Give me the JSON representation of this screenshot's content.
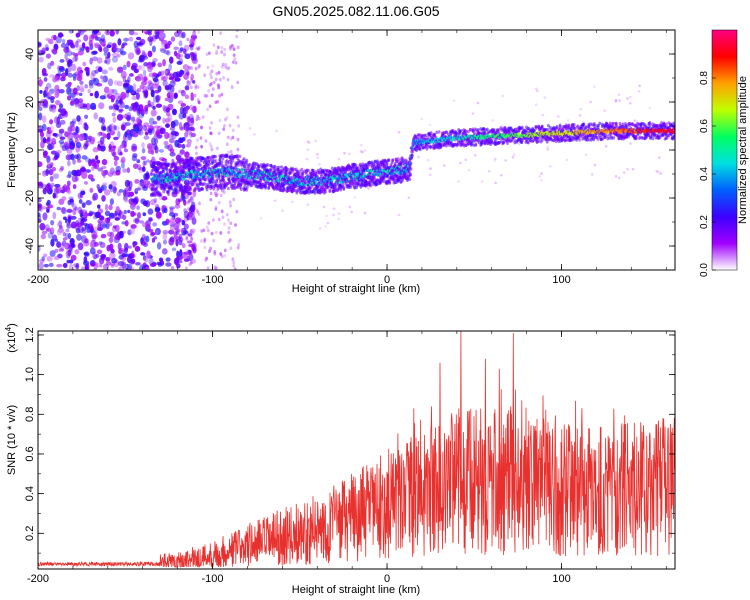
{
  "figure": {
    "title": "GN05.2025.082.11.06.G05"
  },
  "chart_data": [
    {
      "type": "heatmap",
      "panel": "spectrogram",
      "xlabel": "Height of straight line (km)",
      "ylabel": "Frequency (Hz)",
      "xlim": [
        -200,
        165
      ],
      "ylim": [
        -50,
        50
      ],
      "x_ticks": [
        -200,
        -100,
        0,
        100
      ],
      "y_ticks": [
        -40,
        -20,
        0,
        20,
        40
      ],
      "colorbar": {
        "label": "Normalized spectral amplitude",
        "range": [
          0,
          1
        ],
        "ticks": [
          "0.0",
          "0.2",
          "0.4",
          "0.6",
          "0.8"
        ],
        "tick_values": [
          0,
          0.2,
          0.4,
          0.6,
          0.8
        ],
        "colormap": [
          "#ffffff",
          "#a000ff",
          "#3c00ff",
          "#0060ff",
          "#00e0e0",
          "#00ff60",
          "#c0ff00",
          "#ffa000",
          "#ff0000",
          "#ff0080"
        ]
      },
      "ridge": [
        {
          "x": -130,
          "freq": -12
        },
        {
          "x": -110,
          "freq": -10
        },
        {
          "x": -90,
          "freq": -9
        },
        {
          "x": -70,
          "freq": -11
        },
        {
          "x": -50,
          "freq": -13
        },
        {
          "x": -35,
          "freq": -13
        },
        {
          "x": -20,
          "freq": -11
        },
        {
          "x": 0,
          "freq": -9
        },
        {
          "x": 13,
          "freq": -8
        },
        {
          "x": 15,
          "freq": 3
        },
        {
          "x": 40,
          "freq": 5
        },
        {
          "x": 70,
          "freq": 6
        },
        {
          "x": 100,
          "freq": 7
        },
        {
          "x": 130,
          "freq": 8
        },
        {
          "x": 165,
          "freq": 8
        }
      ]
    },
    {
      "type": "line",
      "panel": "snr",
      "xlabel": "Height of straight line (km)",
      "ylabel": "SNR (10 * v/v)",
      "y_multiplier": "(x10",
      "y_multiplier_exp": "4",
      "xlim": [
        -200,
        165
      ],
      "ylim": [
        0.02,
        1.22
      ],
      "x_ticks": [
        -200,
        -100,
        0,
        100
      ],
      "y_ticks": [
        0.2,
        0.4,
        0.6,
        0.8,
        1.0,
        1.2
      ],
      "y_tick_labels": [
        "0.2",
        "0.4",
        "0.6",
        "0.8",
        "1.0",
        "1.2"
      ],
      "color": "#e8312e",
      "envelope": [
        {
          "x": -200,
          "y": 0.05
        },
        {
          "x": -140,
          "y": 0.05
        },
        {
          "x": -120,
          "y": 0.06
        },
        {
          "x": -100,
          "y": 0.09
        },
        {
          "x": -80,
          "y": 0.14
        },
        {
          "x": -60,
          "y": 0.18
        },
        {
          "x": -40,
          "y": 0.22
        },
        {
          "x": -20,
          "y": 0.28
        },
        {
          "x": 0,
          "y": 0.34
        },
        {
          "x": 20,
          "y": 0.4
        },
        {
          "x": 40,
          "y": 0.46
        },
        {
          "x": 60,
          "y": 0.46
        },
        {
          "x": 80,
          "y": 0.44
        },
        {
          "x": 100,
          "y": 0.42
        },
        {
          "x": 130,
          "y": 0.42
        },
        {
          "x": 165,
          "y": 0.44
        }
      ],
      "peaks": [
        {
          "x": 42,
          "y": 1.22
        },
        {
          "x": 72,
          "y": 1.21
        },
        {
          "x": 30,
          "y": 1.06
        },
        {
          "x": 56,
          "y": 1.08
        },
        {
          "x": 64,
          "y": 1.03
        },
        {
          "x": 15,
          "y": 0.83
        }
      ]
    }
  ]
}
